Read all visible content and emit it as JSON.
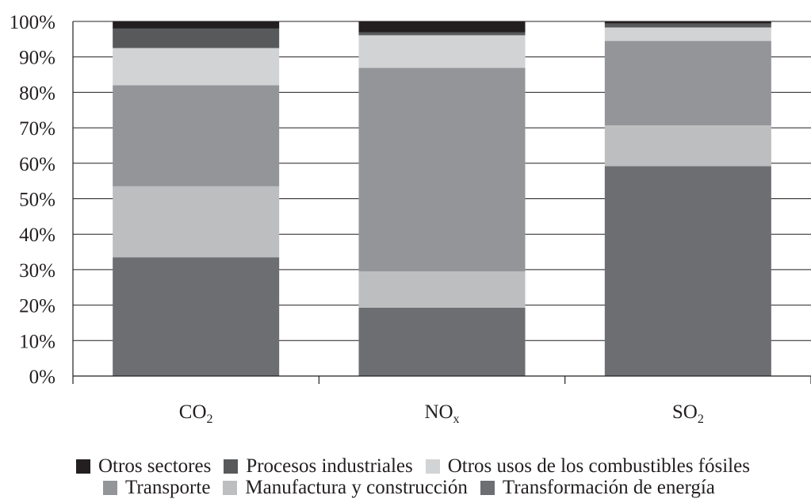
{
  "chart_data": {
    "type": "bar",
    "stacked": true,
    "normalized_percent": true,
    "categories": [
      {
        "base": "CO",
        "sub": "2"
      },
      {
        "base": "NO",
        "sub": "x"
      },
      {
        "base": "SO",
        "sub": "2"
      }
    ],
    "series": [
      {
        "name": "Transformación de energía",
        "color": "#6d6e71",
        "values": [
          33.5,
          19.3,
          59.2
        ]
      },
      {
        "name": "Manufactura y construcción",
        "color": "#bcbec0",
        "values": [
          20.0,
          10.2,
          11.5
        ]
      },
      {
        "name": "Transporte",
        "color": "#939598",
        "values": [
          28.5,
          57.4,
          23.8
        ]
      },
      {
        "name": "Otros usos de los combustibles fósiles",
        "color": "#d1d3d4",
        "values": [
          10.5,
          9.2,
          3.8
        ]
      },
      {
        "name": "Procesos industriales",
        "color": "#58595b",
        "values": [
          5.5,
          0.8,
          1.1
        ]
      },
      {
        "name": "Otros sectores",
        "color": "#231f20",
        "values": [
          2.0,
          3.1,
          0.6
        ]
      }
    ],
    "y_ticks": [
      "0%",
      "10%",
      "20%",
      "30%",
      "40%",
      "50%",
      "60%",
      "70%",
      "80%",
      "90%",
      "100%"
    ],
    "ylim": [
      0,
      100
    ],
    "grid": true,
    "legend_position": "bottom"
  },
  "legend": {
    "row1": [
      "Otros sectores",
      "Procesos industriales",
      "Otros usos de los combustibles fósiles"
    ],
    "row2": [
      "Transporte",
      "Manufactura y construcción",
      "Transformación de energía"
    ]
  }
}
